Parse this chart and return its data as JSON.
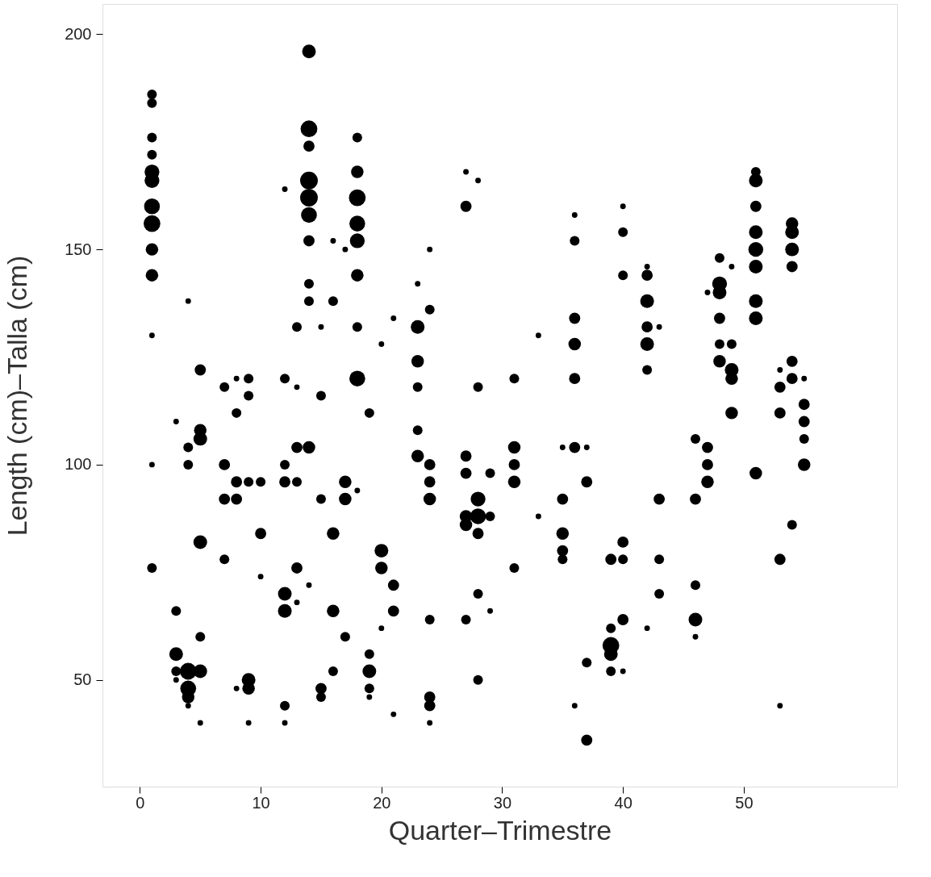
{
  "chart_data": {
    "type": "bubble",
    "xlabel": "Quarter–Trimestre",
    "ylabel": "Length (cm)–Talla (cm)",
    "xlim": [
      -3.1,
      62.7
    ],
    "ylim": [
      25.2,
      207
    ],
    "xticks": [
      0,
      10,
      20,
      30,
      40,
      50
    ],
    "yticks": [
      50,
      100,
      150,
      200
    ],
    "grid": false,
    "legend": false,
    "marker": "circle",
    "relative": false,
    "series": [
      {
        "color": "#000000",
        "x": [
          1,
          1,
          1,
          1,
          1,
          1,
          1,
          1,
          1,
          1,
          1,
          1,
          1,
          3,
          3,
          3,
          3,
          3,
          4,
          4,
          4,
          4,
          4,
          4,
          4,
          5,
          5,
          5,
          5,
          5,
          5,
          5,
          7,
          7,
          7,
          7,
          8,
          8,
          8,
          8,
          8,
          9,
          9,
          9,
          9,
          9,
          9,
          10,
          10,
          10,
          12,
          12,
          12,
          12,
          12,
          12,
          12,
          12,
          13,
          13,
          13,
          13,
          13,
          13,
          14,
          14,
          14,
          14,
          14,
          14,
          14,
          14,
          14,
          14,
          14,
          15,
          15,
          15,
          15,
          15,
          16,
          16,
          16,
          16,
          16,
          17,
          17,
          17,
          17,
          18,
          18,
          18,
          18,
          18,
          18,
          18,
          18,
          18,
          19,
          19,
          19,
          19,
          19,
          20,
          20,
          20,
          20,
          21,
          21,
          21,
          21,
          23,
          23,
          23,
          23,
          23,
          23,
          24,
          24,
          24,
          24,
          24,
          24,
          24,
          24,
          24,
          27,
          27,
          27,
          27,
          27,
          27,
          27,
          28,
          28,
          28,
          28,
          28,
          28,
          28,
          29,
          29,
          29,
          31,
          31,
          31,
          31,
          31,
          33,
          33,
          35,
          35,
          35,
          35,
          35,
          36,
          36,
          36,
          36,
          36,
          36,
          36,
          37,
          37,
          37,
          37,
          39,
          39,
          39,
          39,
          39,
          40,
          40,
          40,
          40,
          40,
          40,
          40,
          42,
          42,
          42,
          42,
          42,
          42,
          42,
          43,
          43,
          43,
          43,
          46,
          46,
          46,
          46,
          46,
          47,
          47,
          47,
          47,
          48,
          48,
          48,
          48,
          48,
          48,
          49,
          49,
          49,
          49,
          49,
          51,
          51,
          51,
          51,
          51,
          51,
          51,
          51,
          51,
          53,
          53,
          53,
          53,
          53,
          54,
          54,
          54,
          54,
          54,
          54,
          54,
          55,
          55,
          55,
          55,
          55
        ],
        "values": [
          186,
          184,
          176,
          172,
          168,
          166,
          160,
          156,
          150,
          144,
          130,
          100,
          76,
          110,
          66,
          56,
          52,
          50,
          138,
          104,
          100,
          52,
          48,
          46,
          44,
          122,
          108,
          106,
          82,
          60,
          52,
          40,
          118,
          100,
          92,
          78,
          120,
          112,
          96,
          92,
          48,
          120,
          116,
          96,
          50,
          48,
          40,
          96,
          84,
          74,
          164,
          120,
          100,
          96,
          70,
          66,
          44,
          40,
          132,
          118,
          104,
          96,
          76,
          68,
          196,
          178,
          174,
          166,
          162,
          158,
          152,
          142,
          138,
          104,
          72,
          132,
          116,
          92,
          48,
          46,
          152,
          138,
          84,
          66,
          52,
          150,
          96,
          92,
          60,
          176,
          168,
          162,
          156,
          152,
          144,
          132,
          120,
          94,
          112,
          56,
          52,
          48,
          46,
          128,
          80,
          76,
          62,
          134,
          72,
          66,
          42,
          142,
          132,
          124,
          118,
          108,
          102,
          150,
          136,
          100,
          96,
          92,
          64,
          46,
          44,
          40,
          168,
          160,
          102,
          98,
          88,
          86,
          64,
          166,
          118,
          92,
          88,
          84,
          70,
          50,
          98,
          88,
          66,
          120,
          104,
          100,
          96,
          76,
          130,
          88,
          104,
          92,
          84,
          80,
          78,
          158,
          152,
          134,
          128,
          120,
          104,
          44,
          104,
          96,
          54,
          36,
          78,
          62,
          58,
          56,
          52,
          160,
          154,
          144,
          82,
          78,
          64,
          52,
          146,
          144,
          138,
          132,
          128,
          122,
          62,
          132,
          92,
          78,
          70,
          106,
          92,
          72,
          64,
          60,
          140,
          104,
          100,
          96,
          148,
          142,
          140,
          134,
          128,
          124,
          146,
          128,
          122,
          120,
          112,
          168,
          166,
          160,
          154,
          150,
          146,
          138,
          134,
          98,
          122,
          118,
          112,
          78,
          44,
          156,
          154,
          150,
          146,
          124,
          120,
          86,
          120,
          114,
          110,
          106,
          100
        ],
        "sizes": [
          0.3,
          0.3,
          0.3,
          0.3,
          0.7,
          0.7,
          0.8,
          0.9,
          0.5,
          0.5,
          0.1,
          0.1,
          0.3,
          0.1,
          0.3,
          0.6,
          0.3,
          0.1,
          0.1,
          0.3,
          0.3,
          0.9,
          0.8,
          0.5,
          0.1,
          0.4,
          0.5,
          0.6,
          0.6,
          0.3,
          0.6,
          0.1,
          0.3,
          0.4,
          0.4,
          0.3,
          0.1,
          0.3,
          0.4,
          0.4,
          0.1,
          0.3,
          0.3,
          0.3,
          0.6,
          0.5,
          0.1,
          0.3,
          0.4,
          0.1,
          0.1,
          0.3,
          0.3,
          0.4,
          0.6,
          0.6,
          0.3,
          0.1,
          0.3,
          0.1,
          0.4,
          0.3,
          0.4,
          0.1,
          0.6,
          0.9,
          0.4,
          1,
          1,
          0.8,
          0.4,
          0.3,
          0.3,
          0.5,
          0.1,
          0.1,
          0.3,
          0.3,
          0.4,
          0.3,
          0.1,
          0.3,
          0.5,
          0.5,
          0.3,
          0.1,
          0.5,
          0.5,
          0.3,
          0.3,
          0.5,
          0.9,
          0.8,
          0.7,
          0.5,
          0.3,
          0.8,
          0.1,
          0.3,
          0.3,
          0.6,
          0.3,
          0.1,
          0.1,
          0.6,
          0.5,
          0.1,
          0.1,
          0.4,
          0.4,
          0.1,
          0.1,
          0.6,
          0.5,
          0.3,
          0.3,
          0.5,
          0.1,
          0.3,
          0.4,
          0.4,
          0.5,
          0.3,
          0.4,
          0.4,
          0.1,
          0.1,
          0.4,
          0.4,
          0.4,
          0.5,
          0.5,
          0.3,
          0.1,
          0.3,
          0.7,
          0.8,
          0.4,
          0.3,
          0.3,
          0.3,
          0.3,
          0.1,
          0.3,
          0.5,
          0.4,
          0.5,
          0.3,
          0.1,
          0.1,
          0.1,
          0.4,
          0.5,
          0.4,
          0.3,
          0.1,
          0.3,
          0.4,
          0.5,
          0.4,
          0.4,
          0.1,
          0.1,
          0.4,
          0.3,
          0.4,
          0.4,
          0.3,
          0.9,
          0.6,
          0.3,
          0.1,
          0.3,
          0.3,
          0.4,
          0.3,
          0.4,
          0.1,
          0.1,
          0.4,
          0.6,
          0.4,
          0.6,
          0.3,
          0.1,
          0.1,
          0.4,
          0.3,
          0.3,
          0.3,
          0.4,
          0.3,
          0.6,
          0.1,
          0.1,
          0.4,
          0.4,
          0.5,
          0.3,
          0.7,
          0.6,
          0.4,
          0.3,
          0.5,
          0.1,
          0.3,
          0.6,
          0.5,
          0.5,
          0.3,
          0.6,
          0.4,
          0.6,
          0.7,
          0.6,
          0.6,
          0.6,
          0.5,
          0.1,
          0.4,
          0.4,
          0.4,
          0.1,
          0.5,
          0.6,
          0.6,
          0.4,
          0.4,
          0.4,
          0.3,
          0.1,
          0.4,
          0.4,
          0.3,
          0.5
        ]
      }
    ]
  }
}
